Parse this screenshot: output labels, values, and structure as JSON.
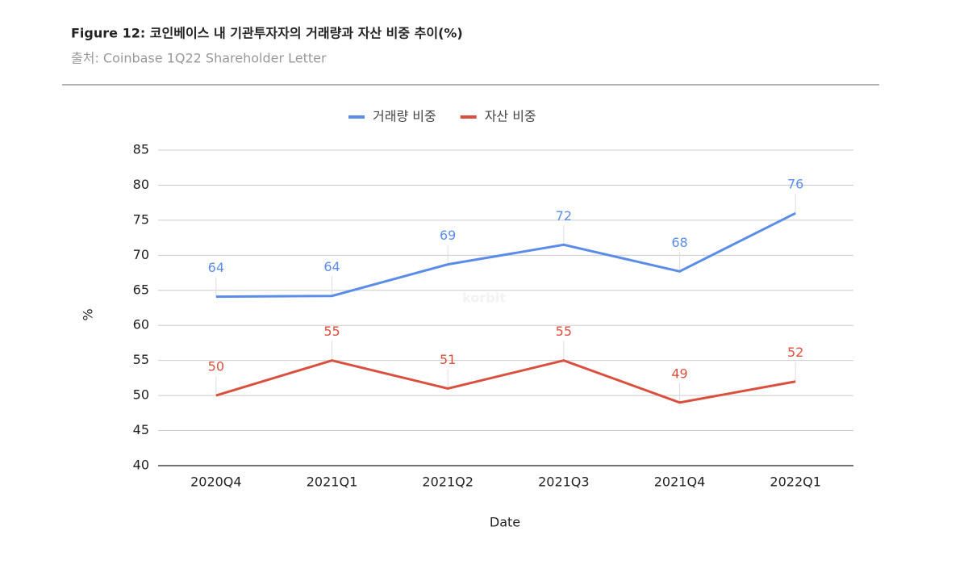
{
  "chart_data": {
    "type": "line",
    "title": "Figure 12: 코인베이스 내 기관투자자의 거래량과 자산 비중 추이(%)",
    "subtitle": "출처: Coinbase 1Q22 Shareholder Letter",
    "watermark": "korbit",
    "x_label": "Date",
    "y_label": "%",
    "categories": [
      "2020Q4",
      "2021Q1",
      "2021Q2",
      "2021Q3",
      "2021Q4",
      "2022Q1"
    ],
    "series": [
      {
        "name": "거래량 비중",
        "color": "#5b8ce8",
        "values": [
          64.1,
          64.2,
          68.7,
          71.5,
          67.7,
          76.0
        ],
        "value_labels": [
          "64",
          "64",
          "69",
          "72",
          "68",
          "76"
        ]
      },
      {
        "name": "자산 비중",
        "color": "#d9503f",
        "values": [
          50,
          55,
          51,
          55,
          49,
          52
        ]
      }
    ],
    "ylim": [
      40,
      85
    ],
    "yticks": [
      40,
      45,
      50,
      55,
      60,
      65,
      70,
      75,
      80,
      85
    ],
    "grid": true,
    "legend": "top"
  }
}
